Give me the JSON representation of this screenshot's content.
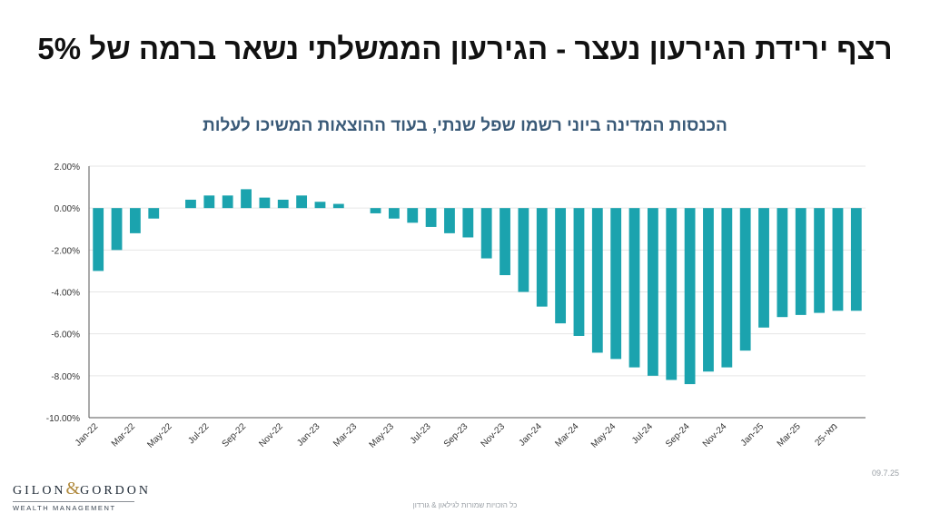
{
  "header": {
    "title": "רצף ירידת הגירעון נעצר - הגירעון הממשלתי נשאר ברמה של 5%",
    "subtitle": "הכנסות המדינה ביוני רשמו שפל שנתי, בעוד ההוצאות המשיכו לעלות"
  },
  "footer": {
    "date": "09.7.25",
    "copyright": "כל הזכויות שמורות לגילאון & גורדון",
    "logo_left": "GILON",
    "logo_amp": "&",
    "logo_right": "GORDON",
    "logo_sub": "WEALTH MANAGEMENT"
  },
  "colors": {
    "bar": "#1ba3ae",
    "grid": "#e6e6e6",
    "axis": "#555555"
  },
  "chart_data": {
    "type": "bar",
    "title": "רצף ירידת הגירעון נעצר - הגירעון הממשלתי נשאר ברמה של 5%",
    "subtitle": "הכנסות המדינה ביוני רשמו שפל שנתי, בעוד ההוצאות המשיכו לעלות",
    "xlabel": "",
    "ylabel": "",
    "ylim": [
      -10,
      2
    ],
    "y_ticks": [
      "2.00%",
      "0.00%",
      "-2.00%",
      "-4.00%",
      "-6.00%",
      "-8.00%",
      "-10.00%"
    ],
    "y_tick_values": [
      2,
      0,
      -2,
      -4,
      -6,
      -8,
      -10
    ],
    "grid": true,
    "legend": "none",
    "categories": [
      "Jan-22",
      "Feb-22",
      "Mar-22",
      "Apr-22",
      "May-22",
      "Jun-22",
      "Jul-22",
      "Aug-22",
      "Sep-22",
      "Oct-22",
      "Nov-22",
      "Dec-22",
      "Jan-23",
      "Feb-23",
      "Mar-23",
      "Apr-23",
      "May-23",
      "Jun-23",
      "Jul-23",
      "Aug-23",
      "Sep-23",
      "Oct-23",
      "Nov-23",
      "Dec-23",
      "Jan-24",
      "Feb-24",
      "Mar-24",
      "Apr-24",
      "May-24",
      "Jun-24",
      "Jul-24",
      "Aug-24",
      "Sep-24",
      "Oct-24",
      "Nov-24",
      "Dec-24",
      "Jan-25",
      "Feb-25",
      "Mar-25",
      "Apr-25",
      "25-מאי",
      "Jun-25"
    ],
    "tick_labels": [
      {
        "i": 0,
        "label": "Jan-22"
      },
      {
        "i": 2,
        "label": "Mar-22"
      },
      {
        "i": 4,
        "label": "May-22"
      },
      {
        "i": 6,
        "label": "Jul-22"
      },
      {
        "i": 8,
        "label": "Sep-22"
      },
      {
        "i": 10,
        "label": "Nov-22"
      },
      {
        "i": 12,
        "label": "Jan-23"
      },
      {
        "i": 14,
        "label": "Mar-23"
      },
      {
        "i": 16,
        "label": "May-23"
      },
      {
        "i": 18,
        "label": "Jul-23"
      },
      {
        "i": 20,
        "label": "Sep-23"
      },
      {
        "i": 22,
        "label": "Nov-23"
      },
      {
        "i": 24,
        "label": "Jan-24"
      },
      {
        "i": 26,
        "label": "Mar-24"
      },
      {
        "i": 28,
        "label": "May-24"
      },
      {
        "i": 30,
        "label": "Jul-24"
      },
      {
        "i": 32,
        "label": "Sep-24"
      },
      {
        "i": 34,
        "label": "Nov-24"
      },
      {
        "i": 36,
        "label": "Jan-25"
      },
      {
        "i": 38,
        "label": "Mar-25"
      },
      {
        "i": 40,
        "label": "25-מאי"
      }
    ],
    "values": [
      -3.0,
      -2.0,
      -1.2,
      -0.5,
      null,
      0.4,
      0.6,
      0.6,
      0.9,
      0.5,
      0.4,
      0.6,
      0.3,
      0.2,
      null,
      -0.25,
      -0.5,
      -0.7,
      -0.9,
      -1.2,
      -1.4,
      -2.4,
      -3.2,
      -4.0,
      -4.7,
      -5.5,
      -6.1,
      -6.9,
      -7.2,
      -7.6,
      -8.0,
      -8.2,
      -8.4,
      -7.8,
      -7.6,
      -6.8,
      -5.7,
      -5.2,
      -5.1,
      -5.0,
      -4.9,
      -4.9
    ]
  }
}
